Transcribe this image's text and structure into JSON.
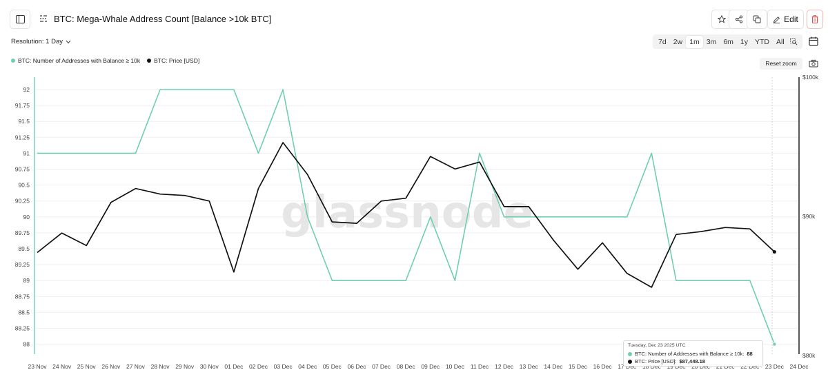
{
  "header": {
    "title": "BTC: Mega-Whale Address Count [Balance >10k BTC]",
    "edit_label": "Edit"
  },
  "toolbar": {
    "resolution_label": "Resolution: 1 Day",
    "ranges": [
      "7d",
      "2w",
      "1m",
      "3m",
      "6m",
      "1y",
      "YTD",
      "All"
    ],
    "active_range": "1m",
    "reset_zoom_label": "Reset zoom"
  },
  "legend": {
    "items": [
      {
        "label": "BTC: Number of Addresses with Balance ≥ 10k",
        "color": "#6fcfb0"
      },
      {
        "label": "BTC: Price [USD]",
        "color": "#111111"
      }
    ]
  },
  "tooltip": {
    "date": "Tuesday, Dec 23 2025 UTC",
    "row1_label": "BTC: Number of Addresses with Balance ≥ 10k:",
    "row1_value": "88",
    "row2_label": "BTC: Price [USD]:",
    "row2_value": "$87,448.18"
  },
  "watermark": "glassnode",
  "colors": {
    "whale": "#6fcfb0",
    "price": "#111111",
    "accent": "#1a1a1a"
  },
  "chart_data": {
    "type": "line",
    "x": [
      "23 Nov",
      "24 Nov",
      "25 Nov",
      "26 Nov",
      "27 Nov",
      "28 Nov",
      "29 Nov",
      "30 Nov",
      "01 Dec",
      "02 Dec",
      "03 Dec",
      "04 Dec",
      "05 Dec",
      "06 Dec",
      "07 Dec",
      "08 Dec",
      "09 Dec",
      "10 Dec",
      "11 Dec",
      "12 Dec",
      "13 Dec",
      "14 Dec",
      "15 Dec",
      "16 Dec",
      "17 Dec",
      "18 Dec",
      "19 Dec",
      "20 Dec",
      "21 Dec",
      "22 Dec",
      "23 Dec",
      "24 Dec"
    ],
    "series": [
      {
        "name": "BTC: Number of Addresses with Balance ≥ 10k",
        "axis": "left",
        "values": [
          91,
          91,
          91,
          91,
          91,
          92,
          92,
          92,
          92,
          91,
          92,
          90,
          89,
          89,
          89,
          89,
          90,
          89,
          91,
          90,
          90,
          90,
          90,
          90,
          90,
          91,
          89,
          89,
          89,
          89,
          88,
          null
        ]
      },
      {
        "name": "BTC: Price [USD]",
        "axis": "right",
        "values": [
          87400,
          88800,
          87900,
          91000,
          92000,
          91600,
          91500,
          91100,
          86000,
          92000,
          95300,
          93000,
          89600,
          89500,
          91100,
          91300,
          94300,
          93400,
          93900,
          90700,
          90700,
          88300,
          86200,
          88100,
          85900,
          84900,
          88700,
          88900,
          89200,
          89100,
          87448.18,
          null
        ]
      }
    ],
    "left_axis": {
      "ticks": [
        88,
        88.25,
        88.5,
        88.75,
        89,
        89.25,
        89.5,
        89.75,
        90,
        90.25,
        90.5,
        90.75,
        91,
        91.25,
        91.5,
        91.75,
        92
      ],
      "range": [
        87.9,
        92.2
      ]
    },
    "right_axis": {
      "ticks": [
        "$80k",
        "$90k",
        "$100k"
      ],
      "range": [
        80000,
        100000
      ]
    },
    "grid": true
  }
}
